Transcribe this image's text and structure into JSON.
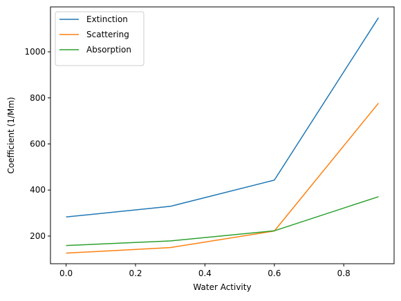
{
  "chart_data": {
    "type": "line",
    "title": "",
    "xlabel": "Water Activity",
    "ylabel": "Coefficient (1/Mm)",
    "xlim": [
      -0.045,
      0.945
    ],
    "ylim": [
      80,
      1195
    ],
    "x_ticks": [
      0.0,
      0.2,
      0.4,
      0.6,
      0.8
    ],
    "x_tick_labels": [
      "0.0",
      "0.2",
      "0.4",
      "0.6",
      "0.8"
    ],
    "y_ticks": [
      200,
      400,
      600,
      800,
      1000
    ],
    "y_tick_labels": [
      "200",
      "400",
      "600",
      "800",
      "1000"
    ],
    "grid": false,
    "legend_position": "top-left",
    "x": [
      0.0,
      0.3,
      0.6,
      0.9
    ],
    "series": [
      {
        "name": "Extinction",
        "color": "#1f77b4",
        "values": [
          283,
          329,
          443,
          1148
        ]
      },
      {
        "name": "Scattering",
        "color": "#ff7f0e",
        "values": [
          126,
          150,
          222,
          777
        ]
      },
      {
        "name": "Absorption",
        "color": "#2ca02c",
        "values": [
          159,
          179,
          223,
          371
        ]
      }
    ]
  }
}
